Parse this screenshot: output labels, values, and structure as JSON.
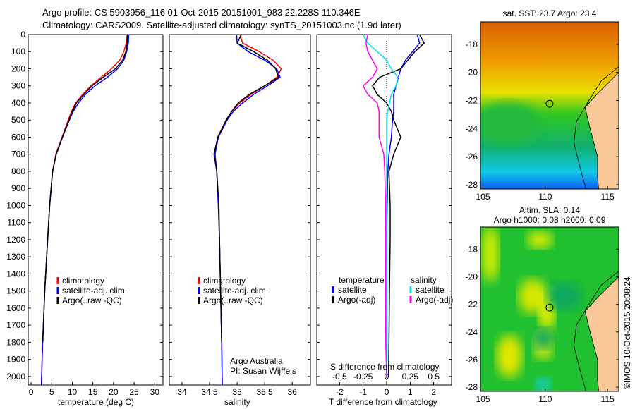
{
  "title_line1": "Argo profile: CS 5903956_116 01-Oct-2015 20151001_983 22.228S 110.346E",
  "title_line2": "Climatology: CARS2009. Satellite-adjusted climatology: synTS_20151003.nc (1.9d later)",
  "colors": {
    "climatology": "#ff0000",
    "satellite": "#0000ff",
    "argo": "#000000",
    "sal_sat": "#00e5ee",
    "sal_argo": "#ff00ff"
  },
  "chart_data": [
    {
      "type": "line",
      "name": "temperature",
      "xlabel": "temperature (deg C)",
      "ylabel": "",
      "xlim": [
        -0.7,
        32
      ],
      "ylim": [
        0,
        2050
      ],
      "y_reversed": true,
      "xticks": [
        0,
        5,
        10,
        15,
        20,
        25,
        30
      ],
      "yticks": [
        0,
        100,
        200,
        300,
        400,
        500,
        600,
        700,
        800,
        900,
        1000,
        1100,
        1200,
        1300,
        1400,
        1500,
        1600,
        1700,
        1800,
        1900,
        2000
      ],
      "legend": [
        "climatology",
        "satellite-adj. clim.",
        "Argo(..raw -QC)"
      ],
      "depth": [
        0,
        50,
        100,
        150,
        200,
        250,
        300,
        350,
        400,
        450,
        500,
        600,
        700,
        800,
        1000,
        1200,
        1500,
        1800,
        2050
      ],
      "series": [
        {
          "name": "climatology",
          "color": "#ff0000",
          "values": [
            23.3,
            23.1,
            22.5,
            21.5,
            19.5,
            17,
            14.5,
            12.5,
            10.8,
            9.8,
            9,
            7.5,
            6,
            5.2,
            4.5,
            4,
            3.3,
            2.8,
            2.5
          ]
        },
        {
          "name": "satellite-adj. clim.",
          "color": "#0000ff",
          "values": [
            23.7,
            23.6,
            23.2,
            22.5,
            21,
            18.5,
            15.5,
            13.2,
            11.5,
            10.2,
            9.3,
            7.6,
            6.1,
            5.2,
            4.5,
            4,
            3.3,
            2.8,
            2.5
          ]
        },
        {
          "name": "Argo(..raw -QC)",
          "color": "#000000",
          "values": [
            23.4,
            23.3,
            23,
            22.2,
            20.5,
            17.5,
            14.8,
            12.8,
            11,
            10,
            9.2,
            7.6,
            6.1,
            5.2,
            4.5,
            4,
            3.3,
            2.85,
            null
          ]
        }
      ]
    },
    {
      "type": "line",
      "name": "salinity",
      "xlabel": "salinity",
      "xlim": [
        33.77,
        36.33
      ],
      "ylim": [
        0,
        2050
      ],
      "y_reversed": true,
      "xticks": [
        34,
        34.5,
        35,
        35.5,
        36
      ],
      "legend": [
        "climatology",
        "satellite-adj. clim.",
        "Argo(..raw -QC)"
      ],
      "annotation": [
        "Argo Australia",
        "PI: Susan Wijffels"
      ],
      "depth": [
        0,
        50,
        100,
        150,
        200,
        250,
        300,
        350,
        400,
        450,
        500,
        600,
        700,
        800,
        1000,
        1200,
        1500,
        1800,
        2050
      ],
      "series": [
        {
          "name": "climatology",
          "color": "#ff0000",
          "values": [
            35.05,
            35.1,
            35.4,
            35.65,
            35.8,
            35.72,
            35.5,
            35.25,
            35.05,
            34.9,
            34.8,
            34.65,
            34.6,
            34.63,
            34.66,
            34.68,
            34.7,
            34.72,
            34.73
          ]
        },
        {
          "name": "satellite-adj. clim.",
          "color": "#0000ff",
          "values": [
            34.99,
            35.0,
            35.2,
            35.5,
            35.72,
            35.78,
            35.55,
            35.3,
            35.1,
            34.93,
            34.82,
            34.66,
            34.6,
            34.63,
            34.66,
            34.68,
            34.7,
            34.72,
            34.73
          ]
        },
        {
          "name": "Argo(..raw -QC)",
          "color": "#000000",
          "values": [
            35.08,
            35.0,
            35.3,
            35.55,
            35.7,
            35.75,
            35.5,
            35.22,
            35.02,
            34.9,
            34.8,
            34.65,
            34.58,
            34.63,
            34.67,
            34.68,
            34.7,
            34.72,
            null
          ]
        }
      ]
    },
    {
      "type": "line",
      "name": "difference",
      "xlabel": "T difference from climatology",
      "x2label": "S difference from climatology",
      "xlim": [
        -2.97,
        2.76
      ],
      "ylim": [
        0,
        2050
      ],
      "y_reversed": true,
      "xticks": [
        -2,
        -1,
        0,
        1,
        2
      ],
      "x2ticks": [
        "-0.5",
        "-0.25",
        "0",
        "0.25",
        "0.5"
      ],
      "legend_titles": [
        "temperature",
        "salinity"
      ],
      "legend": [
        "satellite",
        "Argo(-adj)",
        "satellite",
        "Argo(-adj)"
      ],
      "depth": [
        0,
        50,
        100,
        150,
        200,
        250,
        300,
        350,
        400,
        450,
        500,
        600,
        700,
        800,
        1000,
        1200,
        1500,
        1800,
        2000
      ],
      "series": [
        {
          "name": "T satellite",
          "color": "#0000ff",
          "values": [
            1.3,
            1.4,
            1.1,
            0.8,
            0.6,
            0.5,
            0.4,
            0.3,
            0.3,
            0.3,
            0.25,
            0.2,
            0.1,
            0.05,
            0.02,
            0,
            0,
            0,
            0
          ]
        },
        {
          "name": "T Argo(-adj)",
          "color": "#000000",
          "values": [
            1.4,
            1.6,
            1.2,
            0.9,
            0.6,
            -0.3,
            -0.6,
            -0.4,
            0,
            0.2,
            0.3,
            0.6,
            0.3,
            0.1,
            0.15,
            0.15,
            0.12,
            0.1,
            0.08
          ]
        },
        {
          "name": "S satellite",
          "color": "#00e5ee",
          "values": [
            -0.25,
            -0.2,
            -0.1,
            0,
            0.05,
            0.12,
            0.1,
            0.05,
            0.03,
            0.01,
            0,
            0,
            0,
            0,
            0,
            0,
            0,
            0,
            0
          ]
        },
        {
          "name": "S Argo(-adj)",
          "color": "#ff00ff",
          "values": [
            -0.2,
            -0.22,
            -0.2,
            -0.15,
            -0.1,
            -0.15,
            -0.25,
            -0.2,
            -0.1,
            -0.08,
            -0.08,
            -0.08,
            -0.03,
            -0.02,
            -0.01,
            -0.01,
            -0.01,
            -0.01,
            0
          ]
        }
      ]
    },
    {
      "type": "heatmap",
      "name": "sst-map",
      "title": "sat. SST: 23.7 Argo: 23.4",
      "xticks": [
        105,
        110,
        115
      ],
      "yticks": [
        -18,
        -20,
        -22,
        -24,
        -26,
        -28
      ],
      "xlim": [
        104.8,
        115.9
      ],
      "ylim": [
        -28.3,
        -16.4
      ],
      "marker": {
        "lon": 110.346,
        "lat": -22.228
      }
    },
    {
      "type": "heatmap",
      "name": "sla-map",
      "title": "Altim. SLA: 0.14",
      "subtitle": "Argo h1000: 0.08 h2000: 0.09",
      "xticks": [
        105,
        110,
        115
      ],
      "yticks": [
        -18,
        -20,
        -22,
        -24,
        -26,
        -28
      ],
      "xlim": [
        104.8,
        115.9
      ],
      "ylim": [
        -28.3,
        -16.4
      ],
      "marker": {
        "lon": 110.346,
        "lat": -22.228
      }
    }
  ],
  "credit": "©IMOS 10-Oct-2015 20:38:24"
}
